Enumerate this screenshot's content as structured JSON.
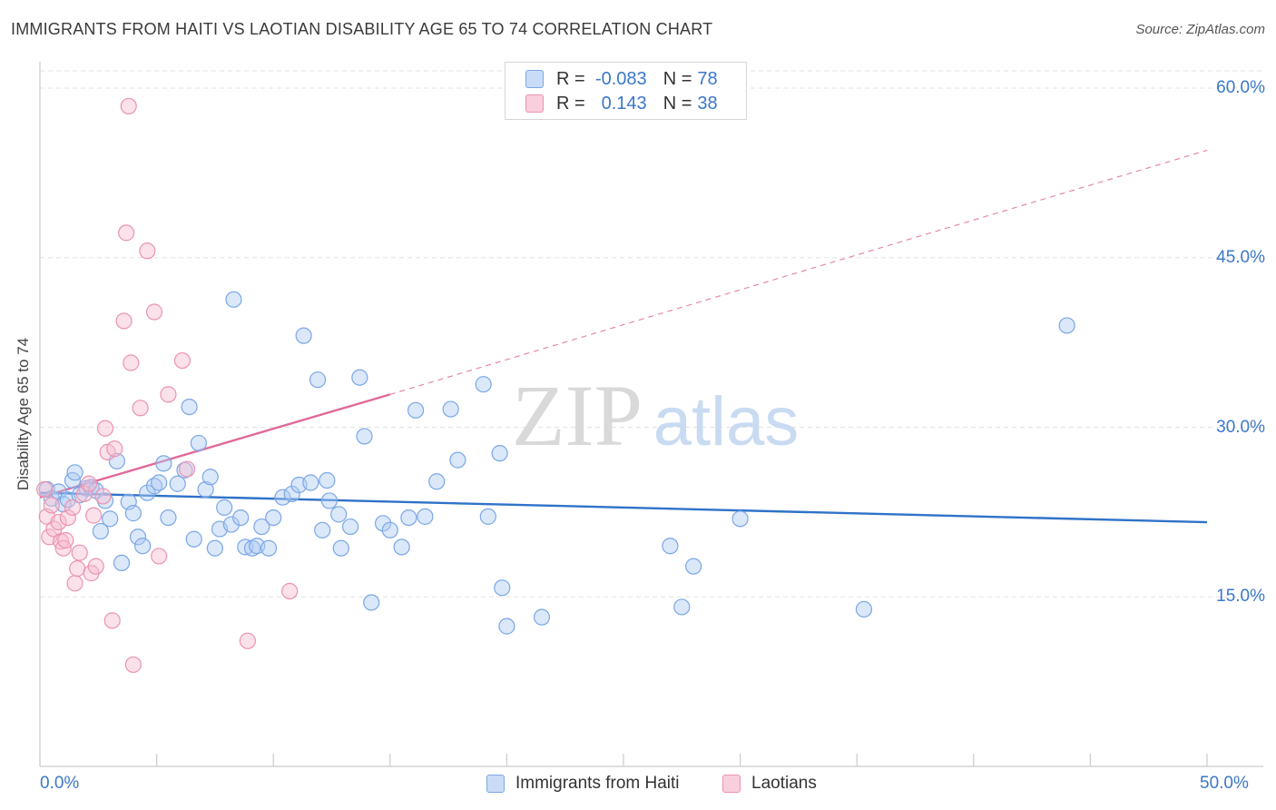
{
  "title": "IMMIGRANTS FROM HAITI VS LAOTIAN DISABILITY AGE 65 TO 74 CORRELATION CHART",
  "source": "Source: ZipAtlas.com",
  "watermark": {
    "zip": "ZIP",
    "atlas": "atlas"
  },
  "legend_top": {
    "rows": [
      {
        "r_label": "R =",
        "r_value": "-0.083",
        "n_label": "N =",
        "n_value": "78",
        "color": "#7aa7e6"
      },
      {
        "r_label": "R =",
        "r_value": "0.143",
        "n_label": "N =",
        "n_value": "38",
        "color": "#eb93b1"
      }
    ]
  },
  "legend_bottom": [
    {
      "label": "Immigrants from Haiti",
      "color": "#7aa7e6"
    },
    {
      "label": "Laotians",
      "color": "#eb93b1"
    }
  ],
  "chart_data": {
    "type": "scatter",
    "title": "IMMIGRANTS FROM HAITI VS LAOTIAN DISABILITY AGE 65 TO 74 CORRELATION CHART",
    "xlabel": "",
    "ylabel": "Disability Age 65 to 74",
    "xlim": [
      0,
      50
    ],
    "ylim": [
      0,
      60
    ],
    "x_tick_labels": [
      "0.0%",
      "50.0%"
    ],
    "y_tick_labels": [
      {
        "value": 60,
        "label": "60.0%"
      },
      {
        "value": 45,
        "label": "45.0%"
      },
      {
        "value": 30,
        "label": "30.0%"
      },
      {
        "value": 15,
        "label": "15.0%"
      }
    ],
    "grid": true,
    "legend_position": "bottom",
    "series": [
      {
        "name": "Immigrants from Haiti",
        "color": "#7aa7e6",
        "trend": {
          "x": [
            0,
            50
          ],
          "y": [
            24.2,
            21.6
          ],
          "color": "#2f72c9",
          "style": "solid"
        },
        "points": [
          [
            0.3,
            24.5
          ],
          [
            0.5,
            23.7
          ],
          [
            0.8,
            24.3
          ],
          [
            1.0,
            23.2
          ],
          [
            1.2,
            23.6
          ],
          [
            1.4,
            25.3
          ],
          [
            1.5,
            26.0
          ],
          [
            1.7,
            24.0
          ],
          [
            2.0,
            24.6
          ],
          [
            2.2,
            24.7
          ],
          [
            2.4,
            24.4
          ],
          [
            2.6,
            20.8
          ],
          [
            2.8,
            23.5
          ],
          [
            3.0,
            21.9
          ],
          [
            3.3,
            27.0
          ],
          [
            3.5,
            18.0
          ],
          [
            3.8,
            23.4
          ],
          [
            4.0,
            22.4
          ],
          [
            4.2,
            20.3
          ],
          [
            4.4,
            19.5
          ],
          [
            4.6,
            24.2
          ],
          [
            4.9,
            24.8
          ],
          [
            5.1,
            25.1
          ],
          [
            5.3,
            26.8
          ],
          [
            5.5,
            22.0
          ],
          [
            5.9,
            25.0
          ],
          [
            6.2,
            26.2
          ],
          [
            6.4,
            31.8
          ],
          [
            6.6,
            20.1
          ],
          [
            6.8,
            28.6
          ],
          [
            7.1,
            24.5
          ],
          [
            7.3,
            25.6
          ],
          [
            7.5,
            19.3
          ],
          [
            7.7,
            21.0
          ],
          [
            7.9,
            22.9
          ],
          [
            8.2,
            21.4
          ],
          [
            8.3,
            41.3
          ],
          [
            8.6,
            22.0
          ],
          [
            8.8,
            19.4
          ],
          [
            9.1,
            19.3
          ],
          [
            9.3,
            19.5
          ],
          [
            9.5,
            21.2
          ],
          [
            9.8,
            19.3
          ],
          [
            10.0,
            22.0
          ],
          [
            10.4,
            23.8
          ],
          [
            10.8,
            24.1
          ],
          [
            11.1,
            24.9
          ],
          [
            11.3,
            38.1
          ],
          [
            11.6,
            25.1
          ],
          [
            11.9,
            34.2
          ],
          [
            12.1,
            20.9
          ],
          [
            12.3,
            25.3
          ],
          [
            12.4,
            23.5
          ],
          [
            12.9,
            19.3
          ],
          [
            12.8,
            22.3
          ],
          [
            13.3,
            21.2
          ],
          [
            13.7,
            34.4
          ],
          [
            13.9,
            29.2
          ],
          [
            14.2,
            14.5
          ],
          [
            14.7,
            21.5
          ],
          [
            15.0,
            20.9
          ],
          [
            15.5,
            19.4
          ],
          [
            15.8,
            22.0
          ],
          [
            16.1,
            31.5
          ],
          [
            16.5,
            22.1
          ],
          [
            17.0,
            25.2
          ],
          [
            17.6,
            31.6
          ],
          [
            17.9,
            27.1
          ],
          [
            19.0,
            33.8
          ],
          [
            19.2,
            22.1
          ],
          [
            19.7,
            27.7
          ],
          [
            19.8,
            15.8
          ],
          [
            20.0,
            12.4
          ],
          [
            21.5,
            13.2
          ],
          [
            27.0,
            19.5
          ],
          [
            27.5,
            14.1
          ],
          [
            28.0,
            17.7
          ],
          [
            30.0,
            21.9
          ],
          [
            35.3,
            13.9
          ],
          [
            44.0,
            39.0
          ]
        ]
      },
      {
        "name": "Laotians",
        "color": "#eb93b1",
        "trend": {
          "x": [
            0,
            15
          ],
          "y": [
            23.8,
            32.9
          ],
          "x_dash_to": 50,
          "y_dash_to": 54.5,
          "color": "#e0699a",
          "style": "solid-then-dashed"
        },
        "points": [
          [
            0.2,
            24.5
          ],
          [
            0.3,
            22.1
          ],
          [
            0.4,
            20.3
          ],
          [
            0.5,
            23.1
          ],
          [
            0.6,
            21.0
          ],
          [
            0.8,
            21.6
          ],
          [
            0.9,
            19.9
          ],
          [
            1.0,
            19.3
          ],
          [
            1.1,
            20.0
          ],
          [
            1.2,
            22.0
          ],
          [
            1.4,
            22.9
          ],
          [
            1.5,
            16.2
          ],
          [
            1.6,
            17.5
          ],
          [
            1.7,
            18.9
          ],
          [
            1.9,
            24.1
          ],
          [
            2.1,
            25.0
          ],
          [
            2.2,
            17.1
          ],
          [
            2.3,
            22.2
          ],
          [
            2.4,
            17.7
          ],
          [
            2.7,
            23.9
          ],
          [
            2.8,
            29.9
          ],
          [
            2.9,
            27.8
          ],
          [
            3.1,
            12.9
          ],
          [
            3.2,
            28.1
          ],
          [
            3.6,
            39.4
          ],
          [
            3.7,
            47.2
          ],
          [
            3.8,
            58.4
          ],
          [
            3.9,
            35.7
          ],
          [
            4.0,
            9.0
          ],
          [
            4.3,
            31.7
          ],
          [
            4.6,
            45.6
          ],
          [
            4.9,
            40.2
          ],
          [
            5.1,
            18.6
          ],
          [
            5.5,
            32.9
          ],
          [
            6.1,
            35.9
          ],
          [
            6.3,
            26.3
          ],
          [
            8.9,
            11.1
          ],
          [
            10.7,
            15.5
          ]
        ]
      }
    ]
  },
  "colors": {
    "grid": "#e3e3e3",
    "axis": "#cccccc",
    "tick_text": "#3b78c8"
  }
}
